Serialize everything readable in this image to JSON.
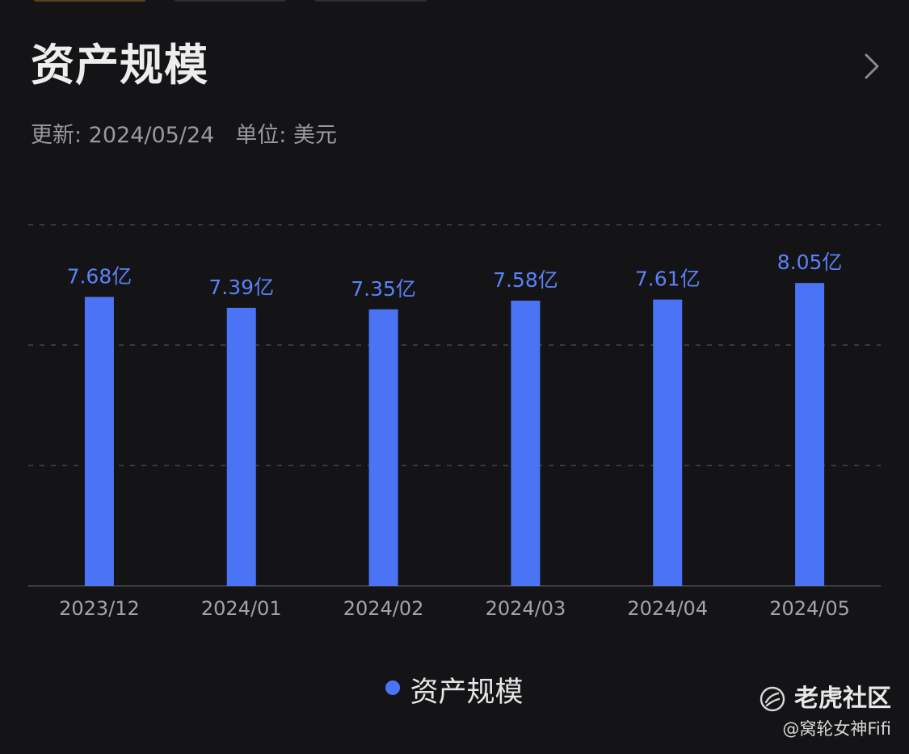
{
  "card": {
    "title": "资产规模",
    "update_label": "更新: 2024/05/24",
    "unit_label": "单位: 美元"
  },
  "colors": {
    "background": "#141416",
    "bar": "#4a74f5",
    "value_label": "#5a82f7",
    "gridline": "#3a3a3e",
    "axis_line": "#3c3c40",
    "tick_label": "#a4a4a8"
  },
  "icons": {
    "chevron": "chevron-right-icon",
    "logo": "tiger-logo-icon"
  },
  "chart_data": {
    "type": "bar",
    "title": "",
    "xlabel": "",
    "ylabel": "",
    "categories": [
      "2023/12",
      "2024/01",
      "2024/02",
      "2024/03",
      "2024/04",
      "2024/05"
    ],
    "series": [
      {
        "name": "资产规模",
        "values": [
          7.68,
          7.39,
          7.35,
          7.58,
          7.61,
          8.05
        ],
        "value_labels": [
          "7.68亿",
          "7.39亿",
          "7.35亿",
          "7.58亿",
          "7.61亿",
          "8.05亿"
        ]
      }
    ],
    "ylim": [
      0,
      9.6
    ],
    "grid": true,
    "legend_position": "bottom-center"
  },
  "legend": {
    "label": "资产规模"
  },
  "watermark": {
    "brand": "老虎社区",
    "user": "@窝轮女神Fifi"
  }
}
